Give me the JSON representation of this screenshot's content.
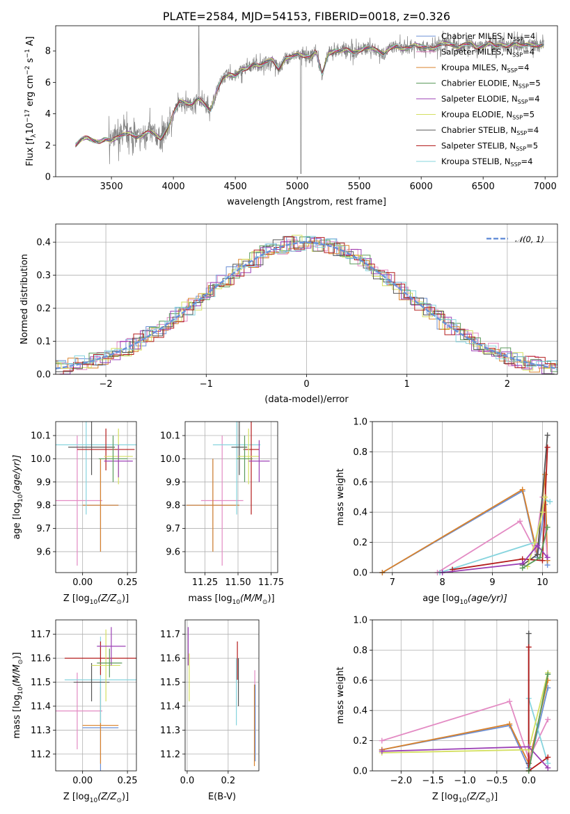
{
  "colors": {
    "Chabrier MILES": "#6b8fd4",
    "Salpeter MILES": "#e38ac3",
    "Kroupa MILES": "#d9822b",
    "Chabrier ELODIE": "#5a9a5a",
    "Salpeter ELODIE": "#9b3fb5",
    "Kroupa ELODIE": "#d4df60",
    "Chabrier STELIB": "#555555",
    "Salpeter STELIB": "#b31b1b",
    "Kroupa STELIB": "#86d4de",
    "gauss": "#6890d8",
    "data": "#808080",
    "grid": "#b0b0b0"
  },
  "chart_data": [
    {
      "type": "line",
      "title": "PLATE=2584, MJD=54153, FIBERID=0018, z=0.326",
      "xlabel": "wavelength [Angstrom, rest frame]",
      "ylabel": "Flux [f",
      "ylabel_rest": "10",
      "ylabel_tail": " erg cm",
      "ylabel_end": " s",
      "ylabel_close": " A",
      "xlim": [
        3050,
        7100
      ],
      "ylim": [
        0,
        9.6
      ],
      "xticks": [
        3500,
        4000,
        4500,
        5000,
        5500,
        6000,
        6500,
        7000
      ],
      "yticks": [
        0,
        2,
        4,
        6,
        8
      ],
      "grid": false,
      "legend_position": "upper-right",
      "legend": [
        {
          "name": "Chabrier MILES",
          "nssp": "4"
        },
        {
          "name": "Salpeter MILES",
          "nssp": "4"
        },
        {
          "name": "Kroupa MILES",
          "nssp": "4"
        },
        {
          "name": "Chabrier ELODIE",
          "nssp": "5"
        },
        {
          "name": "Salpeter ELODIE",
          "nssp": "4"
        },
        {
          "name": "Kroupa ELODIE",
          "nssp": "5"
        },
        {
          "name": "Chabrier STELIB",
          "nssp": "4"
        },
        {
          "name": "Salpeter STELIB",
          "nssp": "5"
        },
        {
          "name": "Kroupa STELIB",
          "nssp": "4"
        }
      ],
      "continuum": {
        "x": [
          3210,
          3260,
          3300,
          3350,
          3400,
          3450,
          3500,
          3550,
          3600,
          3650,
          3700,
          3750,
          3800,
          3850,
          3900,
          3950,
          4000,
          4050,
          4100,
          4150,
          4200,
          4250,
          4300,
          4350,
          4400,
          4450,
          4500,
          4550,
          4600,
          4650,
          4700,
          4750,
          4800,
          4850,
          4900,
          4950,
          5000,
          5050,
          5100,
          5150,
          5200,
          5250,
          5300,
          5350,
          5400,
          5450,
          5500,
          5550,
          5600,
          5650,
          5700,
          5750,
          5800,
          5850,
          5900,
          5950,
          6000,
          6050,
          6100,
          6150,
          6200,
          6250,
          6300,
          6350,
          6400,
          6450,
          6500,
          6550,
          6600,
          6650,
          6700,
          6750,
          6800,
          6850,
          6900,
          6950,
          6990
        ],
        "y": [
          2.0,
          2.4,
          2.5,
          2.3,
          2.2,
          2.4,
          2.3,
          2.5,
          2.7,
          2.8,
          2.5,
          2.6,
          2.9,
          2.7,
          2.4,
          3.0,
          4.0,
          4.8,
          4.7,
          4.6,
          5.0,
          4.6,
          4.2,
          5.5,
          6.3,
          6.5,
          6.4,
          6.8,
          6.9,
          7.2,
          7.0,
          7.3,
          7.5,
          6.8,
          7.5,
          7.6,
          7.8,
          7.7,
          7.6,
          8.0,
          6.5,
          7.8,
          8.0,
          8.0,
          8.1,
          7.9,
          8.0,
          8.2,
          8.2,
          8.0,
          7.8,
          8.2,
          8.3,
          8.1,
          8.2,
          8.4,
          8.3,
          8.2,
          8.1,
          8.4,
          8.5,
          8.4,
          8.2,
          8.4,
          8.5,
          8.2,
          8.3,
          8.5,
          8.3,
          8.4,
          8.3,
          8.5,
          8.3,
          8.4,
          8.4,
          8.3,
          8.4
        ]
      }
    },
    {
      "type": "bar",
      "xlabel": "(data-model)/error",
      "ylabel": "Normed distribution",
      "xlim": [
        -2.5,
        2.5
      ],
      "ylim": [
        0,
        0.455
      ],
      "xticks": [
        -2,
        -1,
        0,
        1,
        2
      ],
      "yticks": [
        0.0,
        0.1,
        0.2,
        0.3,
        0.4
      ],
      "grid": true,
      "legend_position": "upper-right",
      "legend": [
        {
          "name": "$\\mathcal{N}(0,1)$"
        }
      ],
      "bin_width": 0.1
    },
    {
      "type": "scatter",
      "xlabel": "Z [log",
      "xlabel_tail": "(Z/Z",
      "ylabel": "age  [log",
      "ylabel_tail": "(age/yr)]",
      "xlim": [
        -0.15,
        0.3
      ],
      "ylim": [
        9.51,
        10.16
      ],
      "xticks": [
        0.0,
        0.25
      ],
      "yticks": [
        9.6,
        9.7,
        9.8,
        9.9,
        10.0,
        10.1
      ],
      "grid": true,
      "points": [
        {
          "s": "Salpeter MILES",
          "x": -0.03,
          "y": 9.82,
          "ex": 0.14,
          "ey": 0.28
        },
        {
          "s": "Chabrier MILES",
          "x": 0.1,
          "y": 9.8,
          "ex": 0.1,
          "ey": 0.2
        },
        {
          "s": "Kroupa MILES",
          "x": 0.1,
          "y": 9.8,
          "ex": 0.1,
          "ey": 0.2
        },
        {
          "s": "Kroupa STELIB",
          "x": 0.02,
          "y": 10.06,
          "ex": 0.28,
          "ey": 0.3
        },
        {
          "s": "Chabrier STELIB",
          "x": 0.05,
          "y": 10.05,
          "ex": 0.13,
          "ey": 0.12
        },
        {
          "s": "Salpeter STELIB",
          "x": 0.13,
          "y": 10.04,
          "ex": 0.16,
          "ey": 0.09
        },
        {
          "s": "Kroupa ELODIE",
          "x": 0.2,
          "y": 10.01,
          "ex": 0.08,
          "ey": 0.12
        },
        {
          "s": "Salpeter ELODIE",
          "x": 0.2,
          "y": 9.99,
          "ex": 0.08,
          "ey": 0.07
        },
        {
          "s": "Chabrier ELODIE",
          "x": 0.17,
          "y": 10.0,
          "ex": 0.08,
          "ey": 0.1
        }
      ]
    },
    {
      "type": "scatter",
      "xlabel": "mass [log",
      "xlabel_tail": "(M/M",
      "xlim": [
        11.1,
        11.8
      ],
      "ylim": [
        9.51,
        10.16
      ],
      "xticks": [
        11.25,
        11.5,
        11.75
      ],
      "yticks": [
        9.6,
        9.7,
        9.8,
        9.9,
        10.0,
        10.1
      ],
      "grid": true,
      "points": [
        {
          "s": "Salpeter MILES",
          "x": 11.38,
          "y": 9.82,
          "ex": 0.16,
          "ey": 0.28
        },
        {
          "s": "Chabrier MILES",
          "x": 11.31,
          "y": 9.8,
          "ex": 0.2,
          "ey": 0.2
        },
        {
          "s": "Kroupa MILES",
          "x": 11.31,
          "y": 9.8,
          "ex": 0.2,
          "ey": 0.2
        },
        {
          "s": "Kroupa STELIB",
          "x": 11.49,
          "y": 10.06,
          "ex": 0.18,
          "ey": 0.3
        },
        {
          "s": "Chabrier STELIB",
          "x": 11.51,
          "y": 10.05,
          "ex": 0.06,
          "ey": 0.12
        },
        {
          "s": "Salpeter STELIB",
          "x": 11.6,
          "y": 10.04,
          "ex": 0.06,
          "ey": 0.28
        },
        {
          "s": "Kroupa ELODIE",
          "x": 11.58,
          "y": 10.01,
          "ex": 0.08,
          "ey": 0.12
        },
        {
          "s": "Salpeter ELODIE",
          "x": 11.66,
          "y": 9.99,
          "ex": 0.08,
          "ey": 0.09
        },
        {
          "s": "Chabrier ELODIE",
          "x": 11.55,
          "y": 10.0,
          "ex": 0.06,
          "ey": 0.1
        }
      ]
    },
    {
      "type": "line",
      "xlabel": "age  [log",
      "xlabel_tail": "(age/yr)]",
      "ylabel": "mass weight",
      "xlim": [
        6.6,
        10.3
      ],
      "ylim": [
        0,
        1.0
      ],
      "xticks": [
        7,
        8,
        9,
        10
      ],
      "yticks": [
        0.0,
        0.2,
        0.4,
        0.6,
        0.8,
        1.0
      ],
      "grid": true,
      "series": [
        {
          "s": "Chabrier MILES",
          "x": [
            6.8,
            9.6,
            9.9,
            10.05,
            10.1
          ],
          "y": [
            0.0,
            0.54,
            0.1,
            0.45,
            0.05
          ]
        },
        {
          "s": "Kroupa MILES",
          "x": [
            6.8,
            9.6,
            9.9,
            10.05,
            10.1
          ],
          "y": [
            0.0,
            0.55,
            0.12,
            0.65,
            0.08
          ]
        },
        {
          "s": "Salpeter MILES",
          "x": [
            7.9,
            9.55,
            9.85,
            10.0,
            10.1
          ],
          "y": [
            0.0,
            0.34,
            0.15,
            0.5,
            0.1
          ]
        },
        {
          "s": "Kroupa STELIB",
          "x": [
            7.95,
            9.85,
            10.05,
            10.15
          ],
          "y": [
            0.0,
            0.2,
            0.48,
            0.47
          ]
        },
        {
          "s": "Chabrier STELIB",
          "x": [
            9.6,
            9.9,
            10.1
          ],
          "y": [
            0.05,
            0.12,
            0.91
          ]
        },
        {
          "s": "Salpeter STELIB",
          "x": [
            8.2,
            9.6,
            10.0,
            10.1
          ],
          "y": [
            0.02,
            0.09,
            0.08,
            0.83
          ]
        },
        {
          "s": "Kroupa ELODIE",
          "x": [
            9.7,
            9.85,
            10.0,
            10.05
          ],
          "y": [
            0.04,
            0.2,
            0.4,
            0.5
          ]
        },
        {
          "s": "Salpeter ELODIE",
          "x": [
            8.0,
            9.6,
            9.9,
            10.1
          ],
          "y": [
            0.0,
            0.06,
            0.18,
            0.1
          ]
        },
        {
          "s": "Chabrier ELODIE",
          "x": [
            9.6,
            9.95,
            10.1
          ],
          "y": [
            0.03,
            0.1,
            0.3
          ]
        }
      ]
    },
    {
      "type": "scatter",
      "xlabel": "Z [log",
      "xlabel_tail": "(Z/Z",
      "ylabel": "mass [log",
      "ylabel_tail": "(M/M",
      "xlim": [
        -0.15,
        0.3
      ],
      "ylim": [
        11.13,
        11.76
      ],
      "xticks": [
        0.0,
        0.25
      ],
      "yticks": [
        11.2,
        11.3,
        11.4,
        11.5,
        11.6,
        11.7
      ],
      "grid": true,
      "points": [
        {
          "s": "Salpeter MILES",
          "x": -0.03,
          "y": 11.38,
          "ex": 0.14,
          "ey": 0.16
        },
        {
          "s": "Chabrier MILES",
          "x": 0.1,
          "y": 11.31,
          "ex": 0.1,
          "ey": 0.2
        },
        {
          "s": "Kroupa MILES",
          "x": 0.1,
          "y": 11.32,
          "ex": 0.1,
          "ey": 0.16
        },
        {
          "s": "Kroupa STELIB",
          "x": 0.1,
          "y": 11.51,
          "ex": 0.2,
          "ey": 0.18
        },
        {
          "s": "Chabrier STELIB",
          "x": 0.05,
          "y": 11.5,
          "ex": 0.1,
          "ey": 0.08
        },
        {
          "s": "Salpeter STELIB",
          "x": 0.1,
          "y": 11.6,
          "ex": 0.2,
          "ey": 0.07
        },
        {
          "s": "Kroupa ELODIE",
          "x": 0.13,
          "y": 11.57,
          "ex": 0.08,
          "ey": 0.15
        },
        {
          "s": "Salpeter ELODIE",
          "x": 0.16,
          "y": 11.65,
          "ex": 0.08,
          "ey": 0.08
        },
        {
          "s": "Chabrier ELODIE",
          "x": 0.15,
          "y": 11.58,
          "ex": 0.07,
          "ey": 0.06
        }
      ]
    },
    {
      "type": "scatter",
      "xlabel": "E(B-V)",
      "xlim": [
        -0.01,
        0.35
      ],
      "ylim": [
        11.13,
        11.76
      ],
      "xticks": [
        0.0,
        0.2
      ],
      "yticks": [
        11.2,
        11.3,
        11.4,
        11.5,
        11.6,
        11.7
      ],
      "grid": true,
      "points": [
        {
          "s": "Salpeter ELODIE",
          "x": 0.005,
          "y": 11.65,
          "ex": 0,
          "ey": 0.08
        },
        {
          "s": "Kroupa ELODIE",
          "x": 0.01,
          "y": 11.52,
          "ex": 0,
          "ey": 0.1
        },
        {
          "s": "Salpeter STELIB",
          "x": 0.245,
          "y": 11.59,
          "ex": 0,
          "ey": 0.08
        },
        {
          "s": "Kroupa STELIB",
          "x": 0.24,
          "y": 11.46,
          "ex": 0,
          "ey": 0.14
        },
        {
          "s": "Chabrier STELIB",
          "x": 0.25,
          "y": 11.5,
          "ex": 0,
          "ey": 0.1
        },
        {
          "s": "Salpeter MILES",
          "x": 0.33,
          "y": 11.38,
          "ex": 0,
          "ey": 0.17
        },
        {
          "s": "Kroupa MILES",
          "x": 0.328,
          "y": 11.32,
          "ex": 0,
          "ey": 0.17
        },
        {
          "s": "Chabrier MILES",
          "x": 0.332,
          "y": 11.33,
          "ex": 0,
          "ey": 0.16
        }
      ]
    },
    {
      "type": "line",
      "xlabel": "Z [log",
      "xlabel_tail": "(Z/Z",
      "ylabel": "mass weight",
      "xlim": [
        -2.45,
        0.45
      ],
      "ylim": [
        0,
        1.0
      ],
      "xticks": [
        -2.0,
        -1.5,
        -1.0,
        -0.5,
        0.0
      ],
      "yticks": [
        0.0,
        0.2,
        0.4,
        0.6,
        0.8,
        1.0
      ],
      "grid": true,
      "series": [
        {
          "s": "Chabrier MILES",
          "x": [
            -2.3,
            -0.3,
            0.0,
            0.3
          ],
          "y": [
            0.14,
            0.3,
            0.02,
            0.55
          ]
        },
        {
          "s": "Kroupa MILES",
          "x": [
            -2.3,
            -0.3,
            0.0,
            0.3
          ],
          "y": [
            0.14,
            0.31,
            0.05,
            0.6
          ]
        },
        {
          "s": "Salpeter MILES",
          "x": [
            -2.3,
            -0.3,
            0.0,
            0.3
          ],
          "y": [
            0.2,
            0.46,
            0.08,
            0.34
          ]
        },
        {
          "s": "Kroupa STELIB",
          "x": [
            0.0,
            0.3
          ],
          "y": [
            0.48,
            0.05
          ]
        },
        {
          "s": "Chabrier STELIB",
          "x": [
            0.0,
            0.0
          ],
          "y": [
            0.91,
            0.05
          ]
        },
        {
          "s": "Salpeter STELIB",
          "x": [
            0.0,
            0.0,
            0.3
          ],
          "y": [
            0.82,
            0.0,
            0.09
          ]
        },
        {
          "s": "Kroupa ELODIE",
          "x": [
            -2.3,
            0.0,
            0.3
          ],
          "y": [
            0.12,
            0.14,
            0.65
          ]
        },
        {
          "s": "Salpeter ELODIE",
          "x": [
            -2.3,
            0.0,
            0.3
          ],
          "y": [
            0.13,
            0.16,
            0.02
          ]
        },
        {
          "s": "Chabrier ELODIE",
          "x": [
            0.0,
            0.3
          ],
          "y": [
            0.0,
            0.64
          ]
        }
      ]
    }
  ]
}
